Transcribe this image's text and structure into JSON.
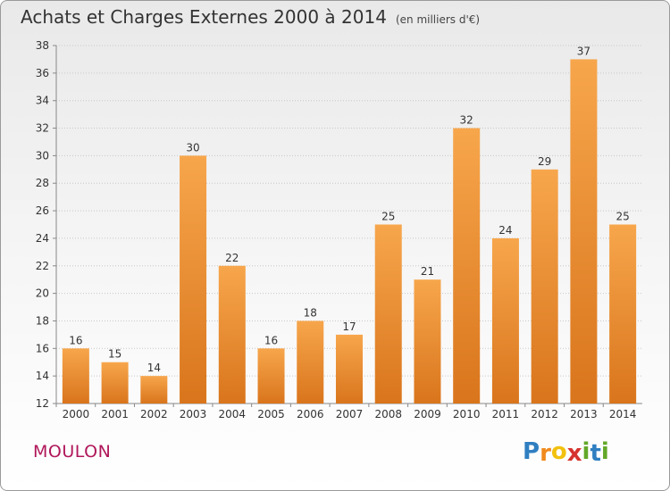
{
  "title": "Achats et Charges Externes 2000 à 2014",
  "subtitle": "(en milliers d'€)",
  "commune": "MOULON",
  "brand": {
    "letters": [
      "P",
      "r",
      "o",
      "x",
      "i",
      "t",
      "i"
    ],
    "colors": [
      "#2f7fc1",
      "#f08a1c",
      "#f2c10f",
      "#d6322d",
      "#63a829",
      "#2f7fc1",
      "#63a829"
    ]
  },
  "colors": {
    "bar_light": "#f7a64c",
    "bar_dark": "#d9751c",
    "accent": "#b0175a"
  },
  "chart_data": {
    "type": "bar",
    "title": "Achats et Charges Externes 2000 à 2014",
    "subtitle": "(en milliers d'€)",
    "categories": [
      "2000",
      "2001",
      "2002",
      "2003",
      "2004",
      "2005",
      "2006",
      "2007",
      "2008",
      "2009",
      "2010",
      "2011",
      "2012",
      "2013",
      "2014"
    ],
    "values": [
      16,
      15,
      14,
      30,
      22,
      16,
      18,
      17,
      25,
      21,
      32,
      24,
      29,
      37,
      25
    ],
    "ylim": [
      12,
      38
    ],
    "yticks": [
      12,
      14,
      16,
      18,
      20,
      22,
      24,
      26,
      28,
      30,
      32,
      34,
      36,
      38
    ],
    "grid": true,
    "legend": "none"
  }
}
